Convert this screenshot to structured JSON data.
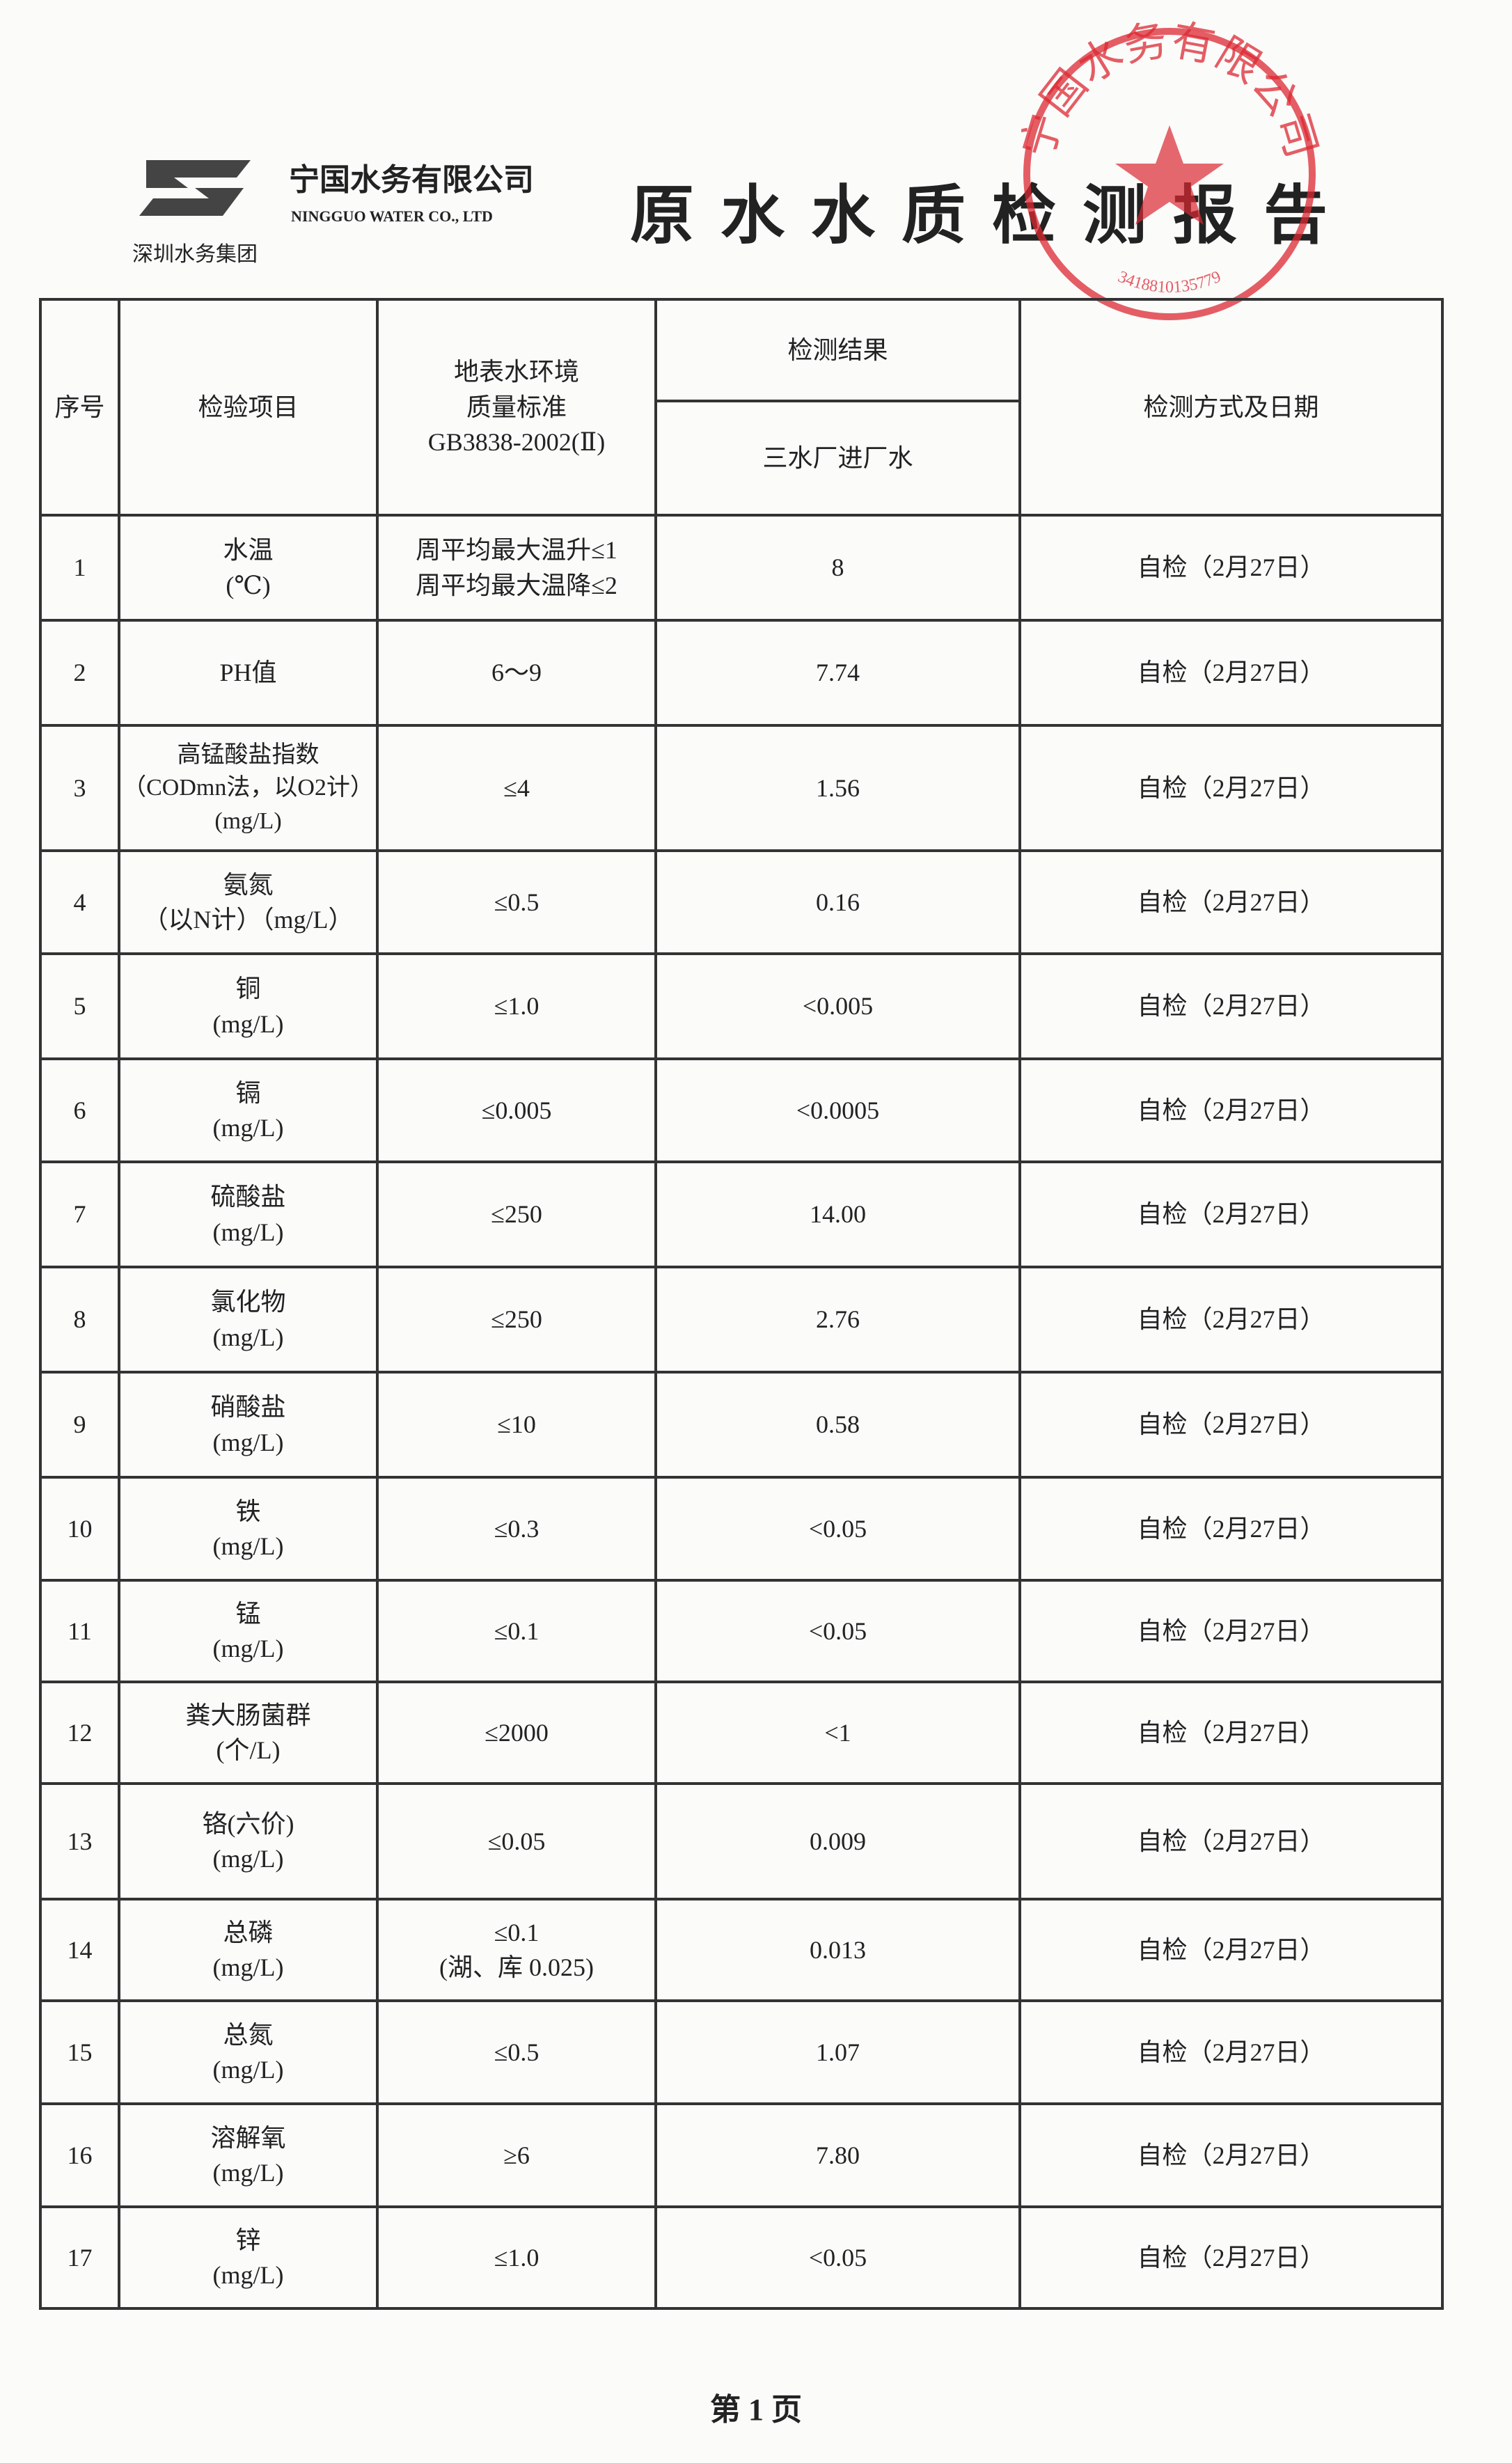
{
  "header": {
    "group": "深圳水务集团",
    "company": "宁国水务有限公司",
    "company_en": "NINGGUO WATER CO., LTD",
    "title": "原水水质检测报告"
  },
  "stamp": {
    "text": "宁国水务有限公司",
    "code": "3418810135779"
  },
  "table": {
    "columns": {
      "no": "序号",
      "item": "检验项目",
      "standard": [
        "地表水环境",
        "质量标准",
        "GB3838-2002(Ⅱ)"
      ],
      "result": "检测结果",
      "result_sub": "三水厂进厂水",
      "method": "检测方式及日期"
    },
    "rows": [
      {
        "no": "1",
        "item": [
          "水温",
          "(℃)"
        ],
        "standard": [
          "周平均最大温升≤1",
          "周平均最大温降≤2"
        ],
        "result": "8",
        "method": "自检（2月27日）"
      },
      {
        "no": "2",
        "item": [
          "PH值"
        ],
        "standard": [
          "6～9"
        ],
        "result": "7.74",
        "method": "自检（2月27日）"
      },
      {
        "no": "3",
        "item": [
          "高锰酸盐指数",
          "（CODmn法，以O2计）",
          "(mg/L)"
        ],
        "standard": [
          "≤4"
        ],
        "result": "1.56",
        "method": "自检（2月27日）"
      },
      {
        "no": "4",
        "item": [
          "氨氮",
          "（以N计）（mg/L）"
        ],
        "standard": [
          "≤0.5"
        ],
        "result": "0.16",
        "method": "自检（2月27日）"
      },
      {
        "no": "5",
        "item": [
          "铜",
          "(mg/L)"
        ],
        "standard": [
          "≤1.0"
        ],
        "result": "<0.005",
        "method": "自检（2月27日）"
      },
      {
        "no": "6",
        "item": [
          "镉",
          "(mg/L)"
        ],
        "standard": [
          "≤0.005"
        ],
        "result": "<0.0005",
        "method": "自检（2月27日）"
      },
      {
        "no": "7",
        "item": [
          "硫酸盐",
          "(mg/L)"
        ],
        "standard": [
          "≤250"
        ],
        "result": "14.00",
        "method": "自检（2月27日）"
      },
      {
        "no": "8",
        "item": [
          "氯化物",
          "(mg/L)"
        ],
        "standard": [
          "≤250"
        ],
        "result": "2.76",
        "method": "自检（2月27日）"
      },
      {
        "no": "9",
        "item": [
          "硝酸盐",
          "(mg/L)"
        ],
        "standard": [
          "≤10"
        ],
        "result": "0.58",
        "method": "自检（2月27日）"
      },
      {
        "no": "10",
        "item": [
          "铁",
          "(mg/L)"
        ],
        "standard": [
          "≤0.3"
        ],
        "result": "<0.05",
        "method": "自检（2月27日）"
      },
      {
        "no": "11",
        "item": [
          "锰",
          "(mg/L)"
        ],
        "standard": [
          "≤0.1"
        ],
        "result": "<0.05",
        "method": "自检（2月27日）"
      },
      {
        "no": "12",
        "item": [
          "粪大肠菌群",
          "(个/L)"
        ],
        "standard": [
          "≤2000"
        ],
        "result": "<1",
        "method": "自检（2月27日）"
      },
      {
        "no": "13",
        "item": [
          "铬(六价)",
          "(mg/L)"
        ],
        "standard": [
          "≤0.05"
        ],
        "result": "0.009",
        "method": "自检（2月27日）"
      },
      {
        "no": "14",
        "item": [
          "总磷",
          "(mg/L)"
        ],
        "standard": [
          "≤0.1",
          "(湖、库 0.025)"
        ],
        "result": "0.013",
        "method": "自检（2月27日）"
      },
      {
        "no": "15",
        "item": [
          "总氮",
          "(mg/L)"
        ],
        "standard": [
          "≤0.5"
        ],
        "result": "1.07",
        "method": "自检（2月27日）"
      },
      {
        "no": "16",
        "item": [
          "溶解氧",
          "(mg/L)"
        ],
        "standard": [
          "≥6"
        ],
        "result": "7.80",
        "method": "自检（2月27日）"
      },
      {
        "no": "17",
        "item": [
          "锌",
          "(mg/L)"
        ],
        "standard": [
          "≤1.0"
        ],
        "result": "<0.05",
        "method": "自检（2月27日）"
      }
    ]
  },
  "footer": {
    "page": "第 1 页"
  }
}
